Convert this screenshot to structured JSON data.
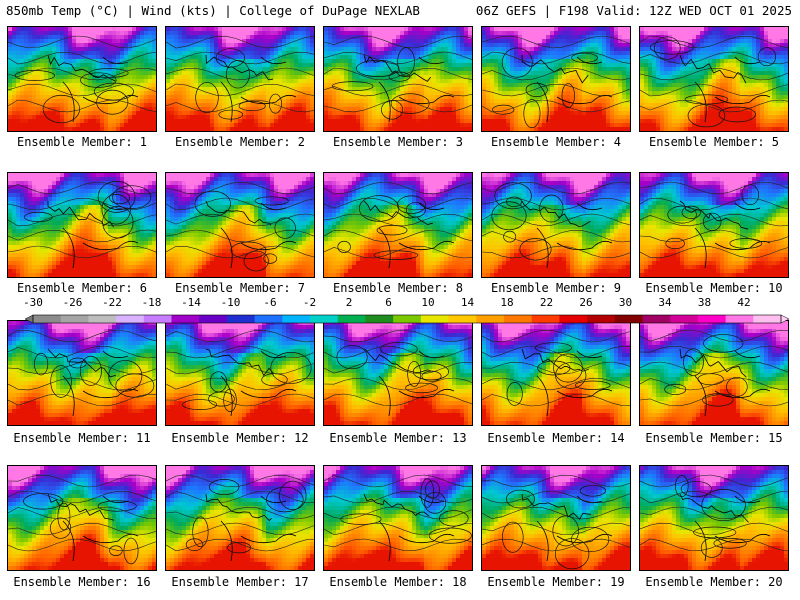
{
  "header": {
    "left": "850mb Temp (°C) | Wind (kts) | College of DuPage NEXLAB",
    "right": "06Z GEFS | F198 Valid: 12Z WED OCT 01 2025"
  },
  "colorbar": {
    "tick_labels": [
      "-30",
      "-26",
      "-22",
      "-18",
      "-14",
      "-10",
      "-6",
      "-2",
      "2",
      "6",
      "10",
      "14",
      "18",
      "22",
      "26",
      "30",
      "34",
      "38",
      "42"
    ],
    "colors": [
      "#8c8c8c",
      "#a5a5a5",
      "#bdbdbd",
      "#d9b3ff",
      "#c77dff",
      "#a000c8",
      "#6a00c8",
      "#2030d0",
      "#1e70ff",
      "#00b4ff",
      "#00d0c8",
      "#00b050",
      "#1e8c1e",
      "#7ac800",
      "#e6e600",
      "#ffc800",
      "#ffa000",
      "#ff7800",
      "#ff3c00",
      "#e60000",
      "#b40000",
      "#820000",
      "#a00064",
      "#d20096",
      "#ff00c8",
      "#ff78e6",
      "#ffc0f0"
    ]
  },
  "members": [
    {
      "label": "Ensemble Member: 1"
    },
    {
      "label": "Ensemble Member: 2"
    },
    {
      "label": "Ensemble Member: 3"
    },
    {
      "label": "Ensemble Member: 4"
    },
    {
      "label": "Ensemble Member: 5"
    },
    {
      "label": "Ensemble Member: 6"
    },
    {
      "label": "Ensemble Member: 7"
    },
    {
      "label": "Ensemble Member: 8"
    },
    {
      "label": "Ensemble Member: 9"
    },
    {
      "label": "Ensemble Member: 10"
    },
    {
      "label": "Ensemble Member: 11"
    },
    {
      "label": "Ensemble Member: 12"
    },
    {
      "label": "Ensemble Member: 13"
    },
    {
      "label": "Ensemble Member: 14"
    },
    {
      "label": "Ensemble Member: 15"
    },
    {
      "label": "Ensemble Member: 16"
    },
    {
      "label": "Ensemble Member: 17"
    },
    {
      "label": "Ensemble Member: 18"
    },
    {
      "label": "Ensemble Member: 19"
    },
    {
      "label": "Ensemble Member: 20"
    }
  ]
}
